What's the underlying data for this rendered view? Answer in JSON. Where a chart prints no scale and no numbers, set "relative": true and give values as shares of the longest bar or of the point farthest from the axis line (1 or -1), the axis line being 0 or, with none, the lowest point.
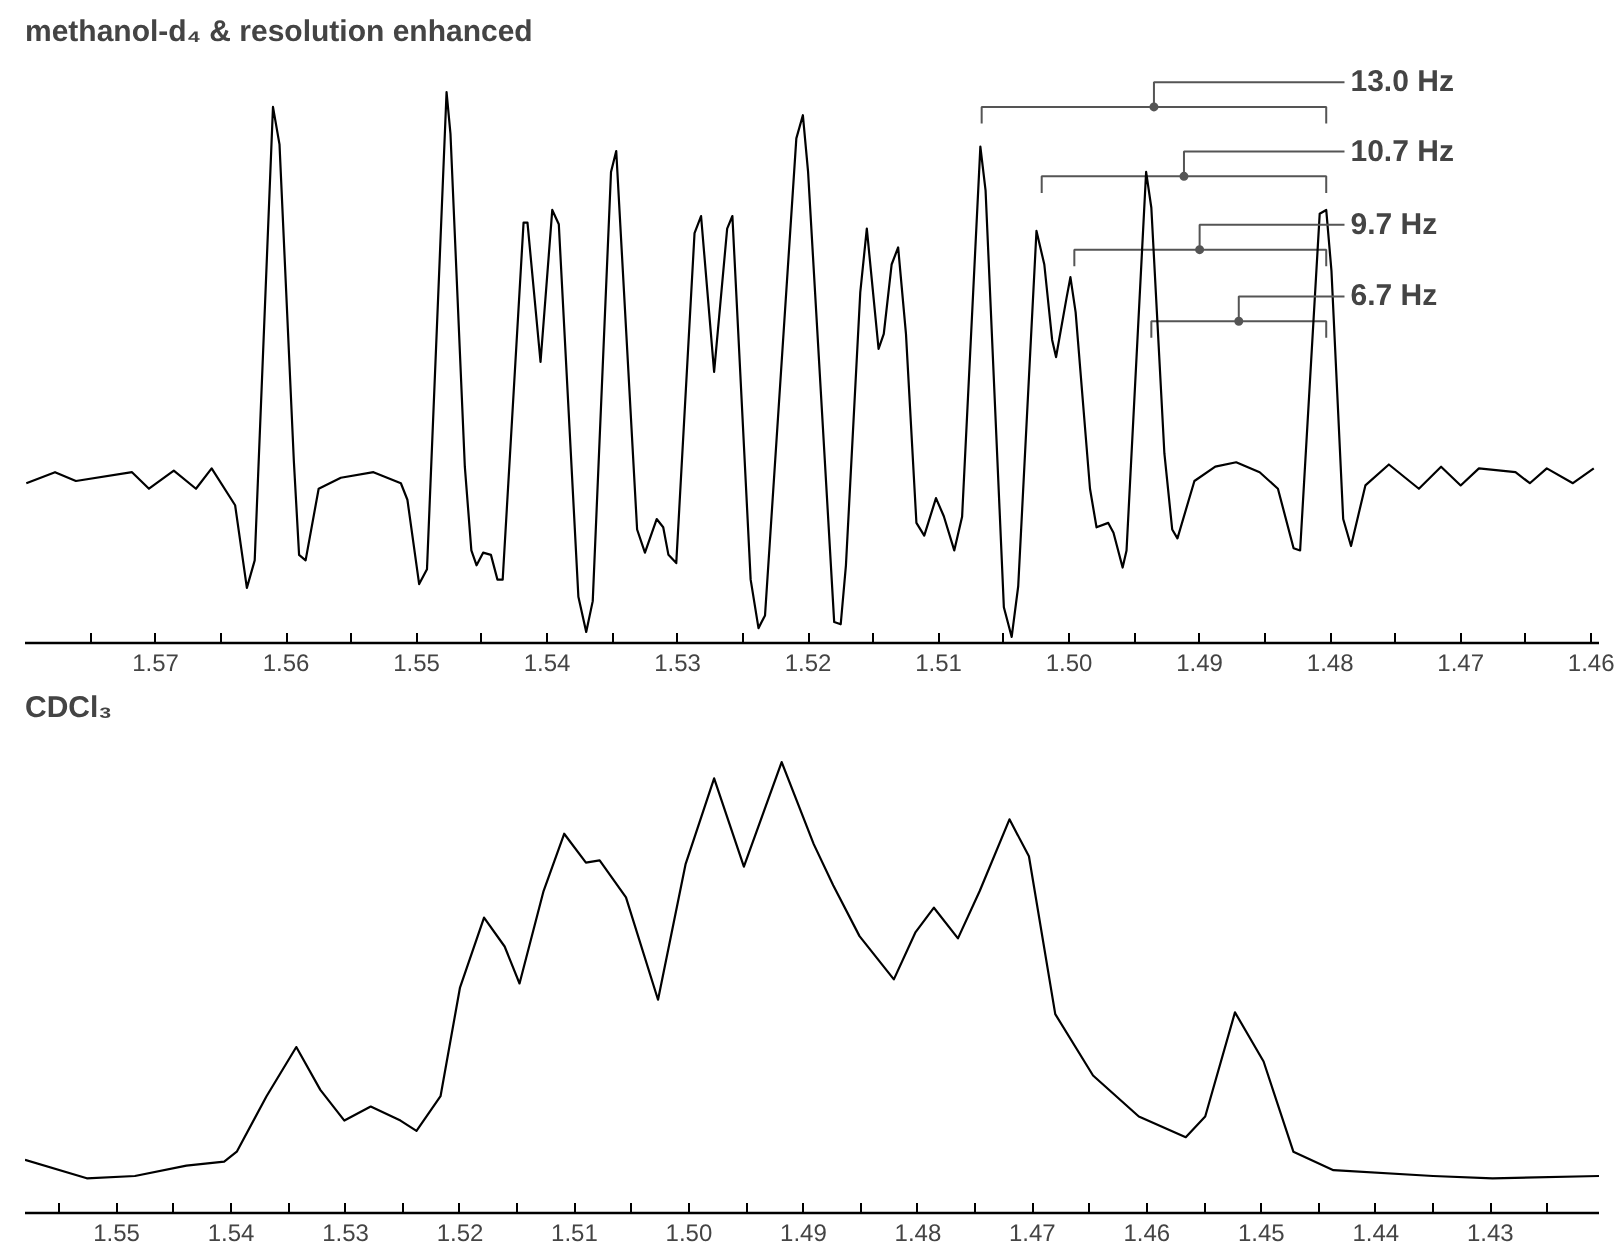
{
  "chart_data": [
    {
      "type": "line",
      "title": "methanol-d₄ & resolution enhanced",
      "relative": true,
      "xlim": [
        1.58,
        1.4594
      ],
      "xticks": [
        {
          "value": 1.575,
          "label": null
        },
        1.57,
        {
          "value": 1.565,
          "label": null
        },
        1.56,
        {
          "value": 1.555,
          "label": null
        },
        1.55,
        {
          "value": 1.545,
          "label": null
        },
        1.54,
        {
          "value": 1.535,
          "label": null
        },
        1.53,
        {
          "value": 1.525,
          "label": null
        },
        1.52,
        {
          "value": 1.515,
          "label": null
        },
        1.51,
        {
          "value": 1.505,
          "label": null
        },
        {
          "value": 1.5,
          "label": "1.50"
        },
        {
          "value": 1.495,
          "label": null
        },
        1.49,
        {
          "value": 1.485,
          "label": null
        },
        1.48,
        {
          "value": 1.475,
          "label": null
        },
        1.47,
        {
          "value": 1.465,
          "label": null
        },
        1.46
      ],
      "annotations": [
        {
          "text": "13.0 Hz",
          "x": 1.4935,
          "y": 0.973
        },
        {
          "text": "10.7 Hz",
          "x": 1.4912,
          "y": 0.847
        },
        {
          "text": "9.7 Hz",
          "x": 1.49,
          "y": 0.714
        },
        {
          "text": "6.7 Hz",
          "x": 1.487,
          "y": 0.584
        }
      ],
      "series": [
        {
          "type": "scatter",
          "marker": "circle",
          "color": "#555555",
          "x": [
            1.4935,
            1.4912,
            1.49,
            1.487
          ],
          "values": [
            0.973,
            0.847,
            0.714,
            0.584
          ],
          "xerrors": [
            [
              1.4803,
              1.5067
            ],
            [
              1.4803,
              1.5021
            ],
            [
              1.4803,
              1.4996
            ],
            [
              1.4803,
              1.4937
            ]
          ]
        },
        {
          "color": "#000000",
          "x": [
            1.5799,
            1.5777,
            1.5761,
            1.5718,
            1.5705,
            1.5686,
            1.5669,
            1.5657,
            1.5639,
            1.563,
            1.5624,
            1.561,
            1.5605,
            1.5594,
            1.559,
            1.5585,
            1.5575,
            1.5558,
            1.5533,
            1.5512,
            1.5507,
            1.5498,
            1.5492,
            1.5477,
            1.5474,
            1.5463,
            1.5458,
            1.5454,
            1.5449,
            1.5443,
            1.5438,
            1.5434,
            1.5418,
            1.5415,
            1.5405,
            1.5396,
            1.5391,
            1.5376,
            1.537,
            1.5365,
            1.5351,
            1.5347,
            1.5331,
            1.5325,
            1.5316,
            1.5311,
            1.5307,
            1.5301,
            1.5287,
            1.5282,
            1.5272,
            1.5262,
            1.5258,
            1.5244,
            1.5238,
            1.5233,
            1.5209,
            1.5204,
            1.52,
            1.518,
            1.5175,
            1.5171,
            1.516,
            1.5155,
            1.5146,
            1.5142,
            1.5136,
            1.5131,
            1.5125,
            1.5117,
            1.5111,
            1.5102,
            1.5096,
            1.5088,
            1.5082,
            1.5068,
            1.5064,
            1.505,
            1.5044,
            1.5039,
            1.5025,
            1.5019,
            1.5013,
            1.501,
            1.5002,
            1.4999,
            1.4995,
            1.4984,
            1.4979,
            1.497,
            1.4966,
            1.4959,
            1.4956,
            1.4941,
            1.4937,
            1.4927,
            1.4921,
            1.4917,
            1.4904,
            1.4888,
            1.4872,
            1.4854,
            1.484,
            1.4828,
            1.4823,
            1.4808,
            1.4803,
            1.4799,
            1.479,
            1.4784,
            1.4773,
            1.4755,
            1.4732,
            1.4715,
            1.47,
            1.4686,
            1.4658,
            1.4647,
            1.4634,
            1.4614,
            1.4598
          ],
          "values": [
            0.29,
            0.31,
            0.294,
            0.31,
            0.28,
            0.313,
            0.28,
            0.317,
            0.25,
            0.1,
            0.15,
            0.973,
            0.905,
            0.33,
            0.16,
            0.15,
            0.28,
            0.3,
            0.31,
            0.29,
            0.26,
            0.107,
            0.134,
            1.0,
            0.924,
            0.32,
            0.168,
            0.141,
            0.164,
            0.16,
            0.115,
            0.115,
            0.763,
            0.763,
            0.51,
            0.786,
            0.76,
            0.084,
            0.02,
            0.076,
            0.855,
            0.893,
            0.206,
            0.164,
            0.225,
            0.21,
            0.16,
            0.145,
            0.744,
            0.775,
            0.492,
            0.752,
            0.775,
            0.115,
            0.027,
            0.05,
            0.916,
            0.958,
            0.855,
            0.038,
            0.034,
            0.141,
            0.637,
            0.752,
            0.534,
            0.561,
            0.687,
            0.718,
            0.561,
            0.218,
            0.195,
            0.263,
            0.23,
            0.168,
            0.229,
            0.901,
            0.821,
            0.065,
            0.011,
            0.103,
            0.748,
            0.687,
            0.55,
            0.519,
            0.626,
            0.664,
            0.6,
            0.28,
            0.21,
            0.218,
            0.2,
            0.137,
            0.168,
            0.855,
            0.79,
            0.344,
            0.206,
            0.19,
            0.294,
            0.32,
            0.328,
            0.31,
            0.28,
            0.172,
            0.168,
            0.779,
            0.786,
            0.676,
            0.225,
            0.176,
            0.286,
            0.324,
            0.28,
            0.32,
            0.286,
            0.317,
            0.31,
            0.29,
            0.317,
            0.29,
            0.317
          ]
        }
      ]
    },
    {
      "type": "line",
      "title": "CDCl₃",
      "relative": true,
      "xlim": [
        1.558,
        1.4205
      ],
      "xticks": [
        {
          "value": 1.555,
          "label": null
        },
        1.55,
        {
          "value": 1.545,
          "label": null
        },
        1.54,
        {
          "value": 1.535,
          "label": null
        },
        1.53,
        {
          "value": 1.525,
          "label": null
        },
        1.52,
        {
          "value": 1.515,
          "label": null
        },
        1.51,
        {
          "value": 1.505,
          "label": null
        },
        {
          "value": 1.5,
          "label": "1.50"
        },
        {
          "value": 1.495,
          "label": null
        },
        1.49,
        {
          "value": 1.485,
          "label": null
        },
        1.48,
        {
          "value": 1.475,
          "label": null
        },
        1.47,
        {
          "value": 1.465,
          "label": null
        },
        1.46,
        {
          "value": 1.455,
          "label": null
        },
        1.45,
        {
          "value": 1.445,
          "label": null
        },
        1.44,
        {
          "value": 1.435,
          "label": null
        },
        1.43,
        {
          "value": 1.425,
          "label": null
        }
      ],
      "series": [
        {
          "color": "#000000",
          "x": [
            1.558,
            1.5526,
            1.5484,
            1.5439,
            1.5406,
            1.5395,
            1.5369,
            1.5343,
            1.5322,
            1.5301,
            1.5278,
            1.5252,
            1.5238,
            1.5217,
            1.52,
            1.5179,
            1.5161,
            1.5148,
            1.5127,
            1.5109,
            1.509,
            1.5078,
            1.5055,
            1.5027,
            1.5003,
            1.4978,
            1.4952,
            1.4919,
            1.4891,
            1.4874,
            1.4851,
            1.4821,
            1.4802,
            1.4786,
            1.4765,
            1.4746,
            1.472,
            1.4703,
            1.468,
            1.4647,
            1.4607,
            1.4566,
            1.4549,
            1.4523,
            1.4498,
            1.4472,
            1.4437,
            1.435,
            1.4298,
            1.4205
          ],
          "values": [
            0.118,
            0.077,
            0.082,
            0.105,
            0.114,
            0.136,
            0.259,
            0.368,
            0.273,
            0.205,
            0.236,
            0.205,
            0.182,
            0.259,
            0.5,
            0.655,
            0.591,
            0.509,
            0.714,
            0.841,
            0.777,
            0.782,
            0.7,
            0.473,
            0.773,
            0.964,
            0.768,
            1.0,
            0.818,
            0.727,
            0.614,
            0.518,
            0.623,
            0.677,
            0.609,
            0.714,
            0.873,
            0.791,
            0.441,
            0.305,
            0.214,
            0.168,
            0.214,
            0.445,
            0.336,
            0.136,
            0.095,
            0.082,
            0.077,
            0.082
          ]
        }
      ]
    }
  ]
}
